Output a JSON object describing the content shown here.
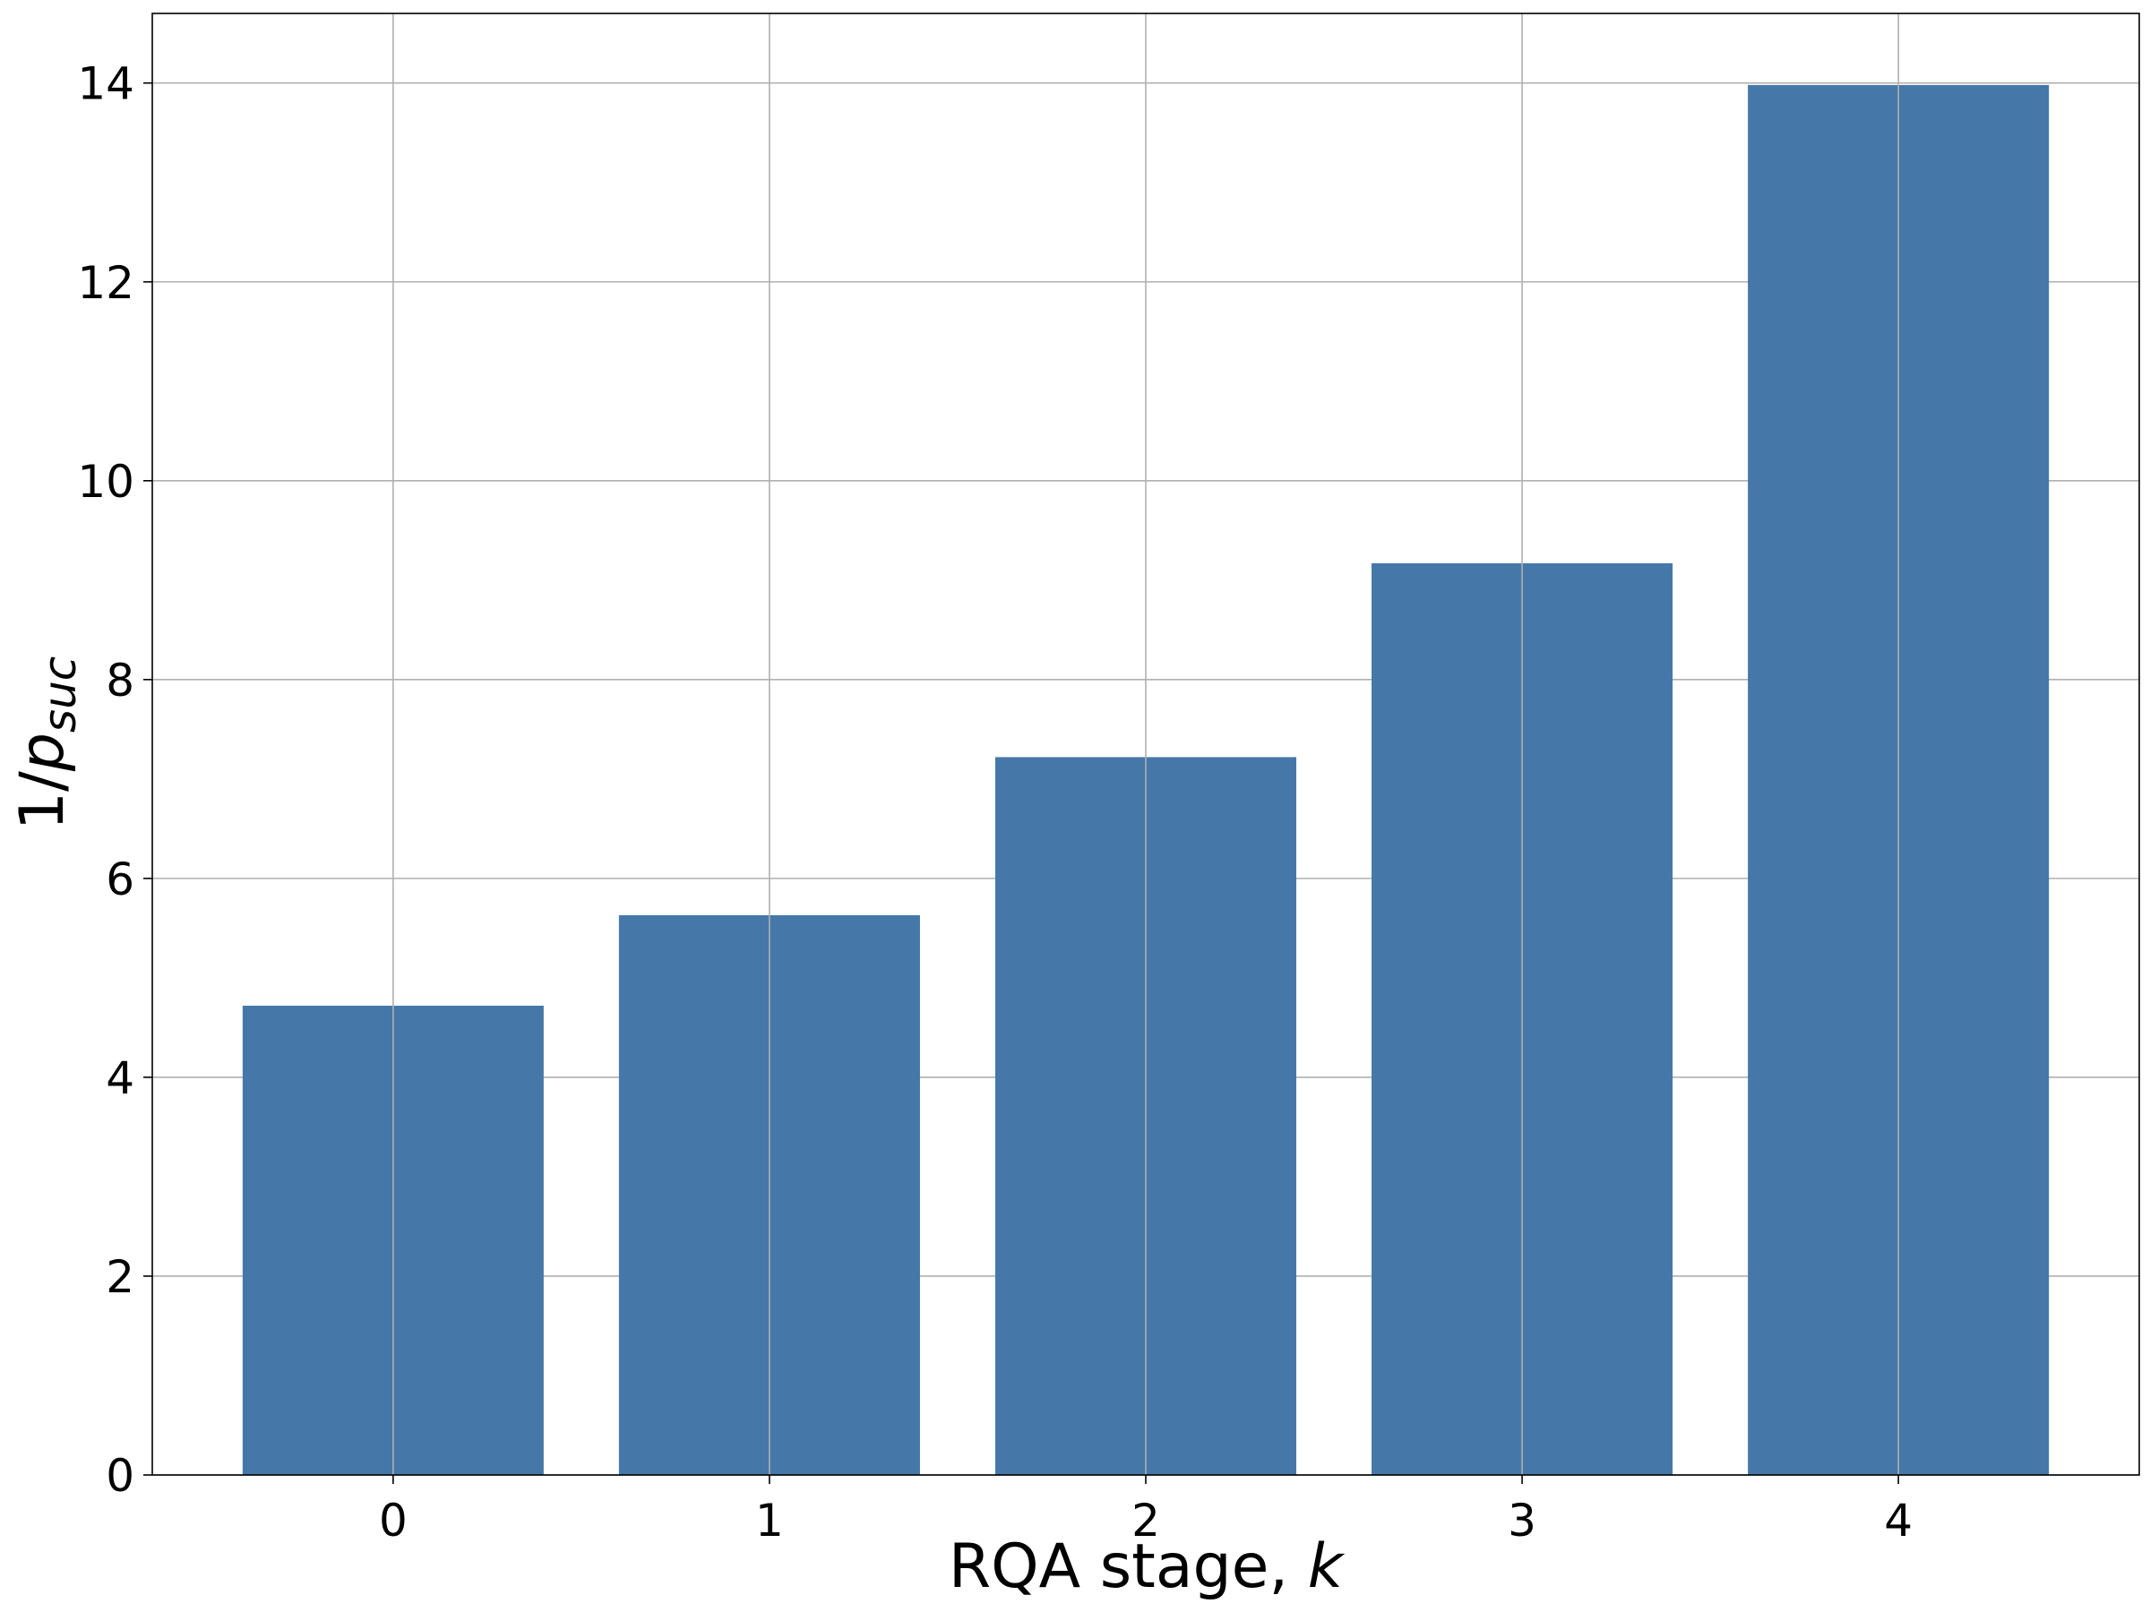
{
  "chart_data": {
    "type": "bar",
    "categories": [
      "0",
      "1",
      "2",
      "3",
      "4"
    ],
    "x": [
      0,
      1,
      2,
      3,
      4
    ],
    "values": [
      4.72,
      5.63,
      7.22,
      9.17,
      13.98
    ],
    "title": "",
    "xlabel": {
      "prefix": "RQA stage, ",
      "var": "k"
    },
    "ylabel": {
      "prefix": "1/",
      "var": "p",
      "sub": "suc"
    },
    "xlim": [
      -0.64,
      4.64
    ],
    "ylim": [
      0,
      14.7
    ],
    "yticks": [
      0,
      2,
      4,
      6,
      8,
      10,
      12,
      14
    ],
    "grid": true,
    "bar_color": "#4578a9",
    "legend": null
  }
}
